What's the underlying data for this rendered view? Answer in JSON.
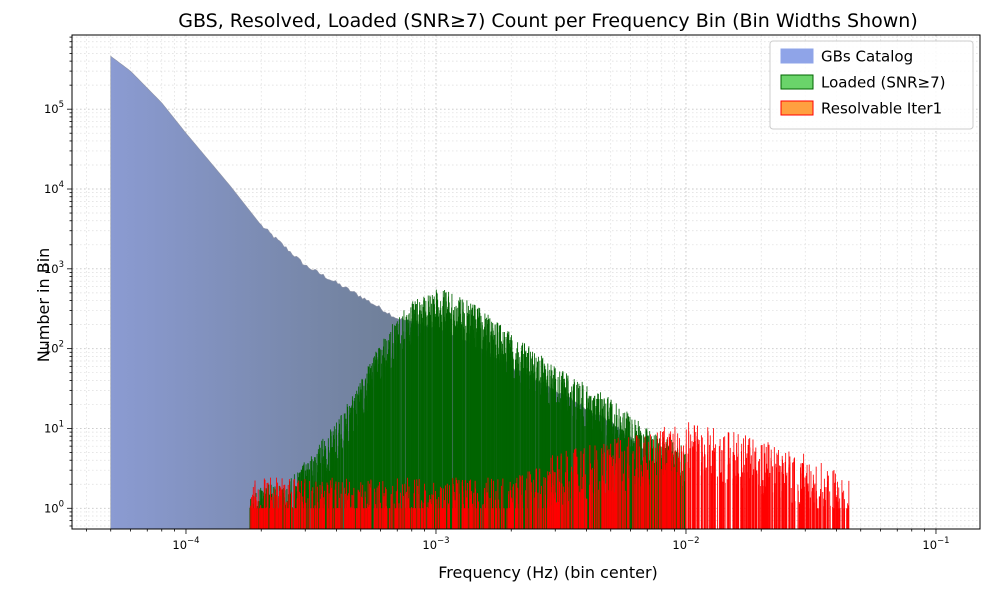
{
  "chart_data": {
    "type": "bar",
    "title": "GBS, Resolved, Loaded (SNR≥7) Count per Frequency Bin (Bin Widths Shown)",
    "xlabel": "Frequency (Hz) (bin center)",
    "ylabel": "Number in Bin",
    "xscale": "log",
    "yscale": "log",
    "xlim": [
      3.5e-05,
      0.15
    ],
    "ylim": [
      0.55,
      850000
    ],
    "grid": true,
    "legend_position": "top-right",
    "x_ticks": [
      {
        "value": 0.0001,
        "base": "10",
        "exp": "−4"
      },
      {
        "value": 0.001,
        "base": "10",
        "exp": "−3"
      },
      {
        "value": 0.01,
        "base": "10",
        "exp": "−2"
      },
      {
        "value": 0.1,
        "base": "10",
        "exp": "−1"
      }
    ],
    "y_ticks": [
      {
        "value": 1,
        "base": "10",
        "exp": "0"
      },
      {
        "value": 10,
        "base": "10",
        "exp": "1"
      },
      {
        "value": 100,
        "base": "10",
        "exp": "2"
      },
      {
        "value": 1000,
        "base": "10",
        "exp": "3"
      },
      {
        "value": 10000,
        "base": "10",
        "exp": "4"
      },
      {
        "value": 100000,
        "base": "10",
        "exp": "5"
      }
    ],
    "series": [
      {
        "name": "GBs Catalog",
        "color": "#6e7e96",
        "fill_left": "#8b9bd2",
        "legend_color": "#8fa4e8",
        "edge": "#8e93a6",
        "x": [
          5e-05,
          6e-05,
          8e-05,
          0.0001,
          0.00015,
          0.0002,
          0.0003,
          0.0005,
          0.0007,
          0.001,
          0.0015,
          0.002,
          0.003,
          0.005,
          0.007
        ],
        "values": [
          460000,
          300000,
          120000,
          50000,
          11000,
          3500,
          1100,
          450,
          240,
          180,
          100,
          60,
          30,
          12,
          5
        ]
      },
      {
        "name": "Loaded (SNR≥7)",
        "color": "#006400",
        "legend_color": "#6ad46a",
        "x": [
          0.00018,
          0.00025,
          0.0003,
          0.0004,
          0.0005,
          0.0006,
          0.0007,
          0.0008,
          0.001,
          0.0012,
          0.0015,
          0.002,
          0.003,
          0.005,
          0.007,
          0.01
        ],
        "values": [
          1,
          1,
          2,
          6,
          20,
          60,
          130,
          200,
          290,
          250,
          160,
          80,
          30,
          12,
          5,
          3
        ]
      },
      {
        "name": "Resolvable Iter1",
        "color": "#ff0000",
        "legend_color": "#ffa040",
        "x": [
          0.00018,
          0.00026,
          0.0004,
          0.0006,
          0.001,
          0.0015,
          0.002,
          0.003,
          0.005,
          0.007,
          0.01,
          0.015,
          0.02,
          0.03,
          0.045
        ],
        "values": [
          1,
          1,
          1,
          1,
          1,
          1,
          1,
          2,
          3,
          4,
          5,
          4,
          3,
          2,
          1
        ]
      }
    ]
  }
}
